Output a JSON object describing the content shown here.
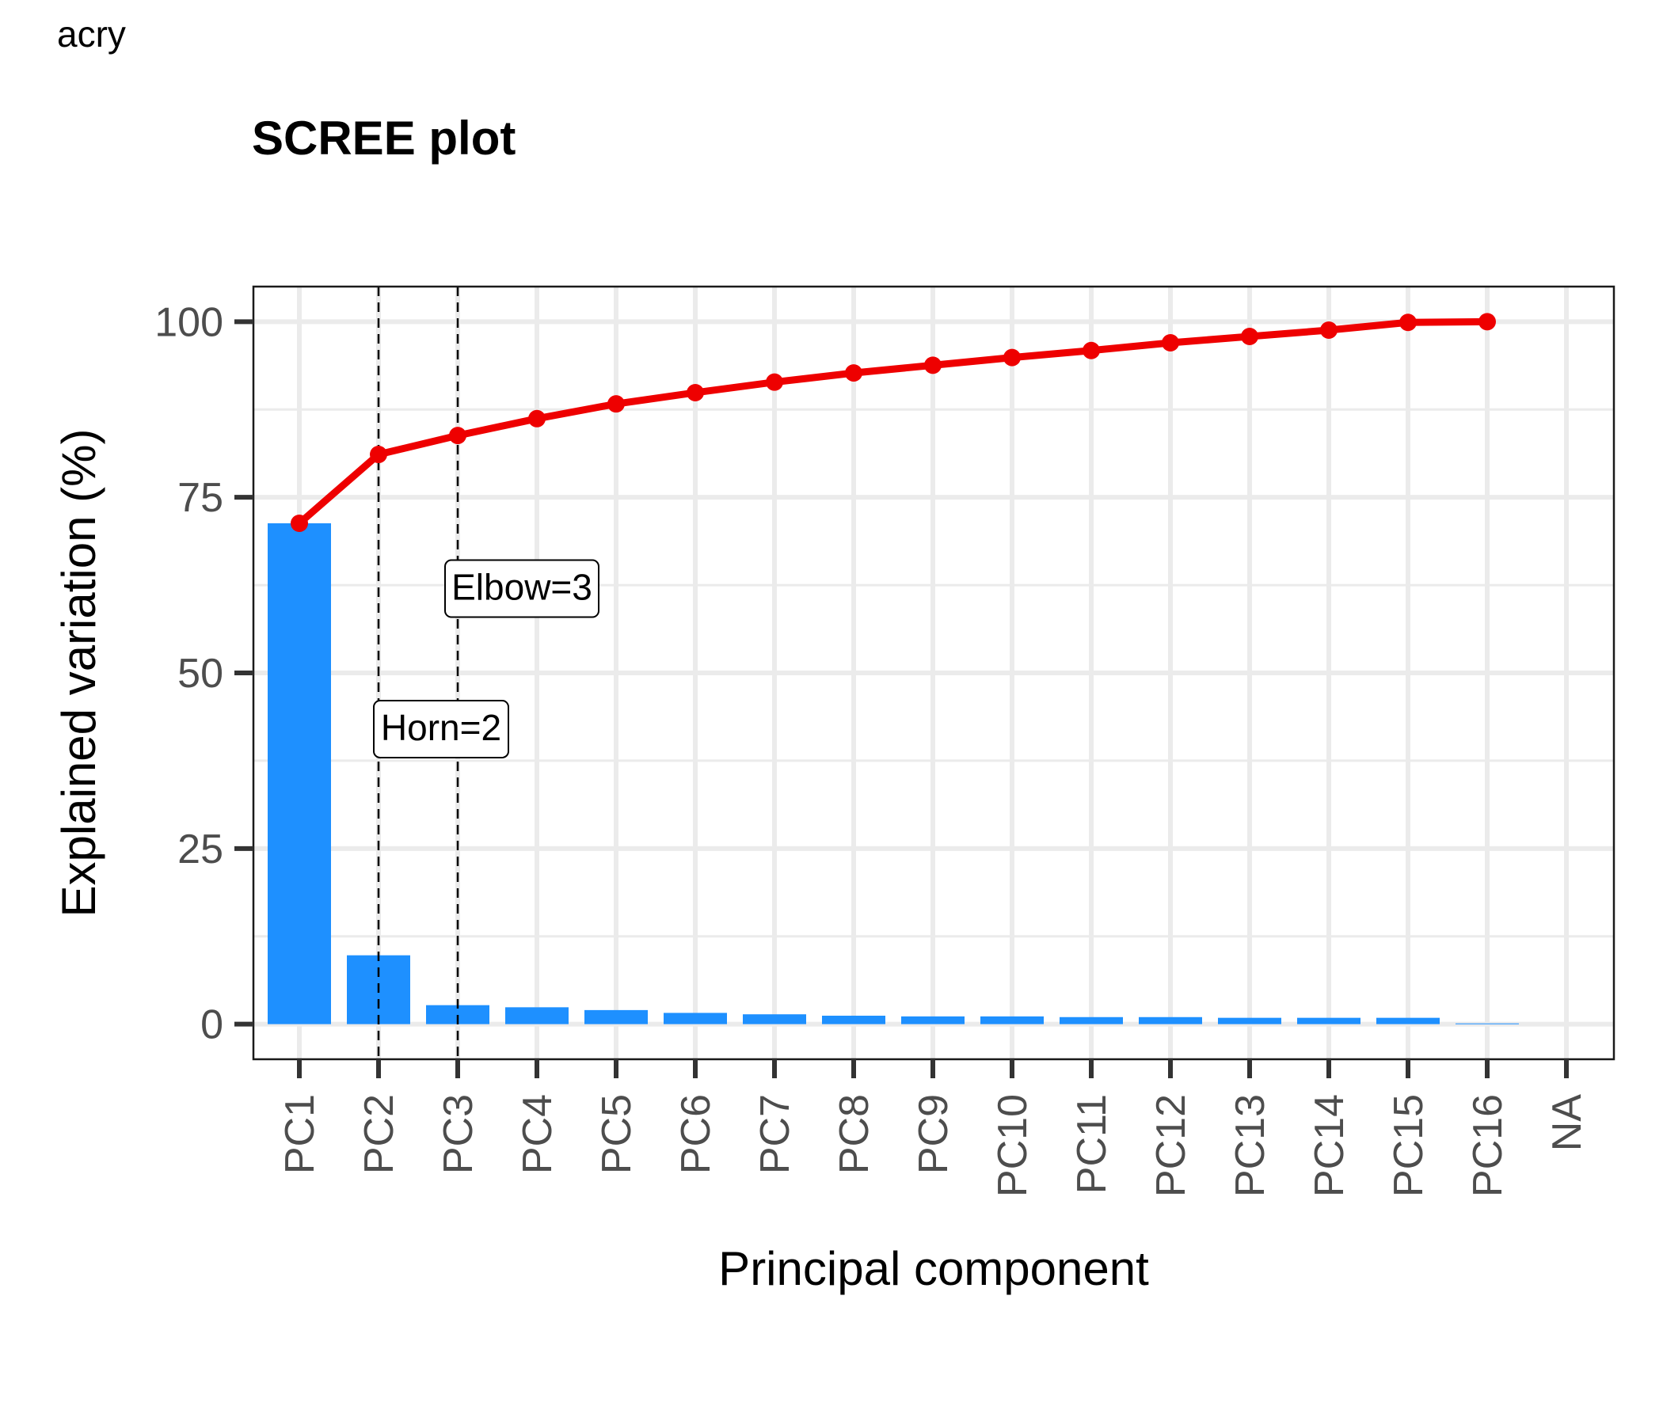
{
  "panel_tag": "acry",
  "chart_data": {
    "type": "bar",
    "title": "SCREE plot",
    "xlabel": "Principal component",
    "ylabel": "Explained variation (%)",
    "categories": [
      "PC1",
      "PC2",
      "PC3",
      "PC4",
      "PC5",
      "PC6",
      "PC7",
      "PC8",
      "PC9",
      "PC10",
      "PC11",
      "PC12",
      "PC13",
      "PC14",
      "PC15",
      "PC16",
      "NA"
    ],
    "ylim": [
      -5,
      105
    ],
    "yticks": [
      0,
      25,
      50,
      75,
      100
    ],
    "grid": true,
    "series": [
      {
        "type": "bar",
        "color": "#1E90FF",
        "values": [
          71.3,
          9.8,
          2.7,
          2.4,
          2.0,
          1.6,
          1.4,
          1.2,
          1.1,
          1.1,
          1.0,
          1.0,
          0.9,
          0.9,
          0.9,
          0.1,
          null
        ]
      },
      {
        "type": "line",
        "color": "#EE0000",
        "values": [
          71.3,
          81.1,
          83.8,
          86.2,
          88.3,
          89.9,
          91.4,
          92.7,
          93.8,
          94.9,
          95.9,
          97.0,
          97.9,
          98.8,
          99.9,
          100.0,
          null
        ]
      }
    ],
    "vlines": [
      {
        "category": "PC2",
        "label": "Horn=2",
        "label_y": 42
      },
      {
        "category": "PC3",
        "label": "Elbow=3",
        "label_y": 62
      }
    ],
    "colors": {
      "bar": "#1E90FF",
      "line": "#EE0000",
      "grid": "#EBEBEB",
      "axis_text": "#4D4D4D",
      "tick": "#333333"
    }
  }
}
